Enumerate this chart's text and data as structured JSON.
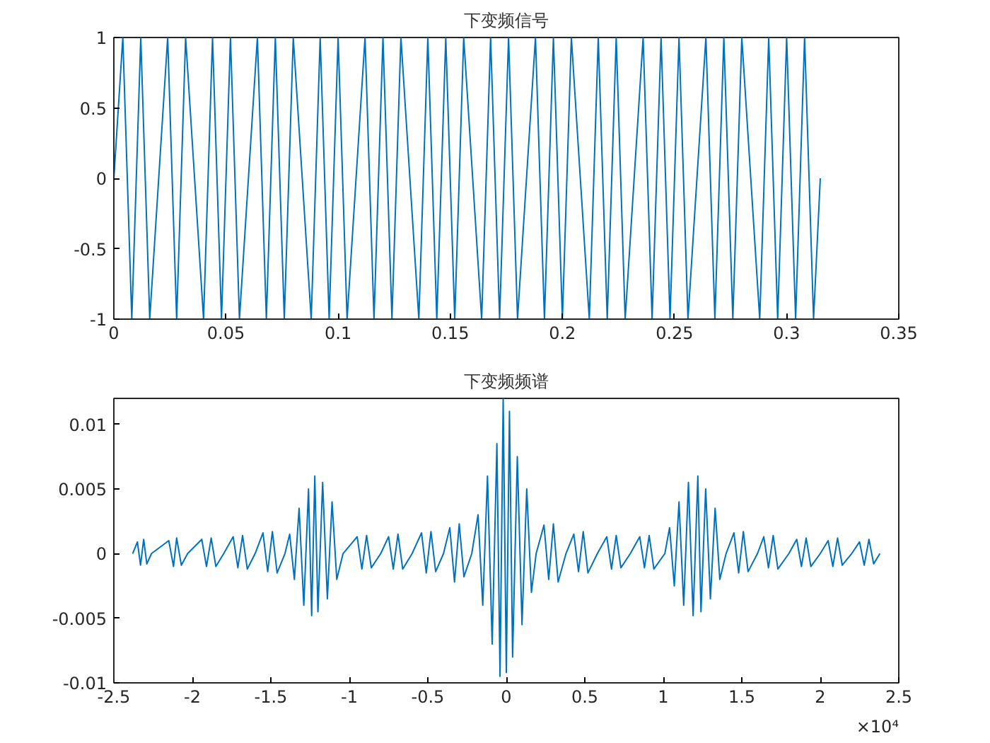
{
  "chart_data": [
    {
      "type": "line",
      "title": "下变频信号",
      "color": "#0072bd",
      "grid": false,
      "xlim": [
        0,
        0.35
      ],
      "ylim": [
        -1,
        1
      ],
      "xticks": [
        0,
        0.05,
        0.1,
        0.15,
        0.2,
        0.25,
        0.3,
        0.35
      ],
      "yticks": [
        -1,
        -0.5,
        0,
        0.5,
        1
      ],
      "x": [
        0,
        0.004,
        0.008,
        0.012,
        0.016,
        0.02,
        0.024,
        0.028,
        0.032,
        0.036,
        0.04,
        0.044,
        0.048,
        0.052,
        0.056,
        0.06,
        0.064,
        0.068,
        0.072,
        0.076,
        0.08,
        0.084,
        0.088,
        0.092,
        0.096,
        0.1,
        0.104,
        0.108,
        0.112,
        0.116,
        0.12,
        0.124,
        0.128,
        0.132,
        0.136,
        0.14,
        0.144,
        0.148,
        0.152,
        0.156,
        0.16,
        0.164,
        0.168,
        0.172,
        0.176,
        0.18,
        0.184,
        0.188,
        0.192,
        0.196,
        0.2,
        0.204,
        0.208,
        0.212,
        0.216,
        0.22,
        0.224,
        0.228,
        0.232,
        0.236,
        0.24,
        0.244,
        0.248,
        0.252,
        0.256,
        0.26,
        0.264,
        0.268,
        0.272,
        0.276,
        0.28,
        0.284,
        0.288,
        0.292,
        0.296,
        0.3,
        0.304,
        0.308,
        0.312,
        0.315
      ],
      "values": [
        0,
        1,
        -1,
        1,
        -1,
        0,
        1,
        -1,
        1,
        0,
        -1,
        1,
        -1,
        1,
        -1,
        0,
        1,
        -1,
        1,
        -1,
        1,
        0,
        -1,
        1,
        -1,
        1,
        -1,
        0,
        1,
        -1,
        1,
        -1,
        1,
        0,
        -1,
        1,
        -1,
        1,
        -1,
        1,
        0,
        -1,
        1,
        -1,
        1,
        -1,
        0,
        1,
        -1,
        1,
        -1,
        1,
        0,
        -1,
        1,
        -1,
        1,
        -1,
        0,
        1,
        -1,
        1,
        -1,
        1,
        -1,
        0,
        1,
        -1,
        1,
        -1,
        1,
        0,
        -1,
        1,
        -1,
        1,
        -1,
        1,
        -1,
        0
      ]
    },
    {
      "type": "line",
      "title": "下变频频谱",
      "color": "#0072bd",
      "grid": false,
      "xlim": [
        -2.5,
        2.5
      ],
      "ylim": [
        -0.01,
        0.012
      ],
      "xticks": [
        -2.5,
        -2,
        -1.5,
        -1,
        -0.5,
        0,
        0.5,
        1,
        1.5,
        2,
        2.5
      ],
      "yticks": [
        -0.01,
        -0.005,
        0,
        0.005,
        0.01
      ],
      "annotations": [
        "×10⁴"
      ],
      "x": [
        -2.38,
        -2.35,
        -2.33,
        -2.31,
        -2.29,
        -2.26,
        -2.15,
        -2.12,
        -2.1,
        -2.07,
        -2.03,
        -1.94,
        -1.91,
        -1.88,
        -1.85,
        -1.8,
        -1.74,
        -1.71,
        -1.68,
        -1.65,
        -1.6,
        -1.55,
        -1.52,
        -1.49,
        -1.46,
        -1.41,
        -1.38,
        -1.35,
        -1.32,
        -1.29,
        -1.26,
        -1.24,
        -1.22,
        -1.2,
        -1.17,
        -1.14,
        -1.11,
        -1.08,
        -1.04,
        -0.95,
        -0.92,
        -0.89,
        -0.86,
        -0.8,
        -0.75,
        -0.72,
        -0.69,
        -0.66,
        -0.6,
        -0.54,
        -0.51,
        -0.48,
        -0.45,
        -0.4,
        -0.36,
        -0.33,
        -0.3,
        -0.27,
        -0.22,
        -0.18,
        -0.15,
        -0.12,
        -0.09,
        -0.06,
        -0.04,
        -0.02,
        0,
        0.02,
        0.04,
        0.07,
        0.1,
        0.13,
        0.16,
        0.19,
        0.24,
        0.27,
        0.3,
        0.33,
        0.38,
        0.43,
        0.46,
        0.49,
        0.52,
        0.58,
        0.64,
        0.67,
        0.7,
        0.73,
        0.79,
        0.85,
        0.88,
        0.91,
        0.94,
        1.01,
        1.04,
        1.07,
        1.1,
        1.13,
        1.16,
        1.19,
        1.22,
        1.24,
        1.27,
        1.3,
        1.33,
        1.36,
        1.4,
        1.45,
        1.48,
        1.51,
        1.54,
        1.6,
        1.64,
        1.67,
        1.7,
        1.73,
        1.8,
        1.85,
        1.88,
        1.91,
        1.94,
        2,
        2.05,
        2.08,
        2.11,
        2.14,
        2.2,
        2.25,
        2.28,
        2.31,
        2.34,
        2.38
      ],
      "values": [
        0,
        0.0009,
        -0.0009,
        0.0011,
        -0.0008,
        0,
        0.001,
        -0.001,
        0.0012,
        -0.0009,
        0,
        0.0011,
        -0.001,
        0.0012,
        -0.001,
        0,
        0.0013,
        -0.0011,
        0.0014,
        -0.0012,
        0,
        0.0016,
        -0.0014,
        0.0017,
        -0.0015,
        0,
        0.0015,
        -0.002,
        0.0035,
        -0.004,
        0.005,
        -0.0048,
        0.006,
        -0.0045,
        0.0055,
        -0.0035,
        0.004,
        -0.002,
        0,
        0.0013,
        -0.0012,
        0.0014,
        -0.0011,
        0,
        0.0013,
        -0.0012,
        0.0015,
        -0.0012,
        0,
        0.0016,
        -0.0015,
        0.0017,
        -0.0014,
        0,
        0.002,
        -0.0022,
        0.0023,
        -0.0018,
        0,
        0.003,
        -0.004,
        0.006,
        -0.007,
        0.0085,
        -0.0095,
        0.012,
        -0.0092,
        0.011,
        -0.008,
        0.0075,
        -0.0055,
        0.005,
        -0.003,
        0,
        0.0022,
        -0.002,
        0.0023,
        -0.0022,
        0,
        0.0015,
        -0.0014,
        0.0017,
        -0.0015,
        0,
        0.0013,
        -0.0012,
        0.0014,
        -0.0011,
        0,
        0.0013,
        -0.0011,
        0.0014,
        -0.0012,
        0,
        0.002,
        -0.0025,
        0.004,
        -0.004,
        0.0055,
        -0.0048,
        0.006,
        -0.0045,
        0.005,
        -0.0035,
        0.0035,
        -0.002,
        0,
        0.0016,
        -0.0015,
        0.0017,
        -0.0014,
        0,
        0.0013,
        -0.0011,
        0.0014,
        -0.0012,
        0,
        0.0011,
        -0.001,
        0.0012,
        -0.001,
        0,
        0.001,
        -0.001,
        0.0012,
        -0.0009,
        0,
        0.0009,
        -0.0009,
        0.0011,
        -0.0008,
        0
      ]
    }
  ]
}
